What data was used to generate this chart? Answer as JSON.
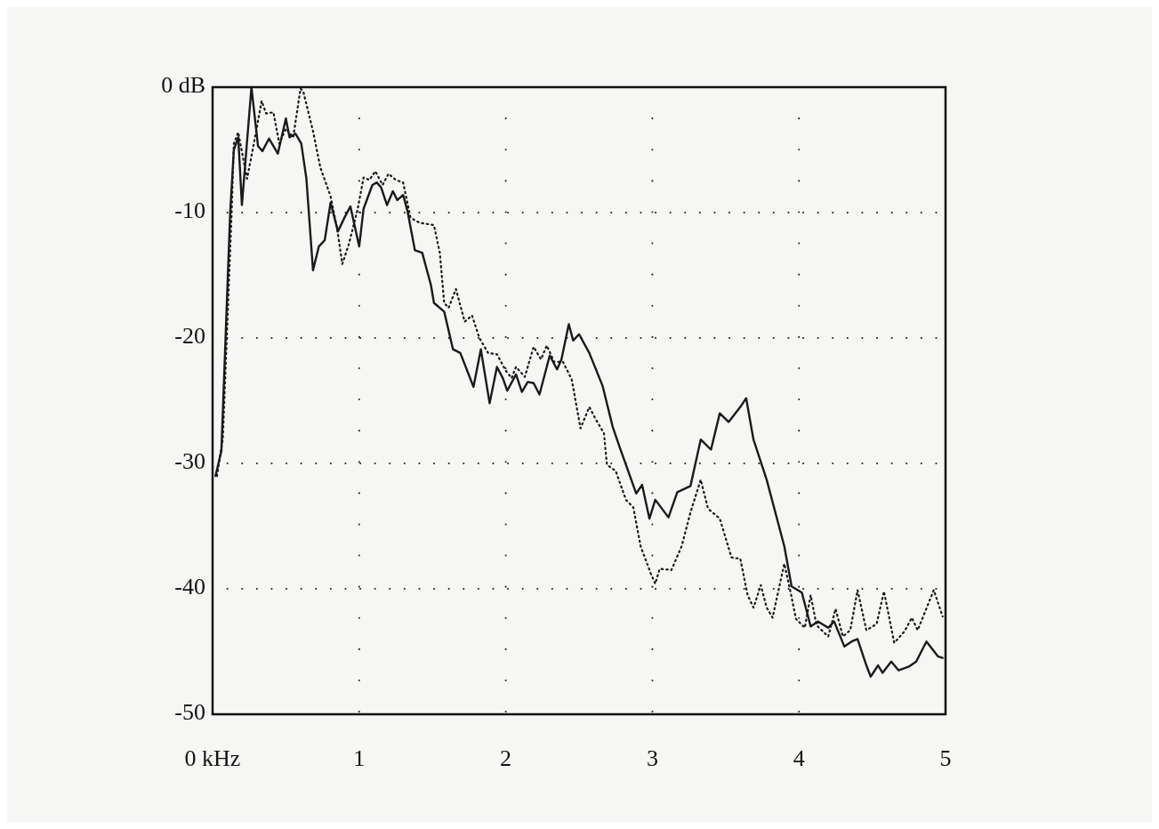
{
  "chart_data": {
    "type": "line",
    "xlim": [
      0,
      5
    ],
    "xticks": [
      {
        "value": 0,
        "label": "0 kHz"
      },
      1,
      2,
      3,
      4,
      5
    ],
    "ylim": [
      -50,
      0
    ],
    "yticks": [
      {
        "value": 0,
        "label": "0 dB"
      },
      -10,
      -20,
      -30,
      -40,
      -50
    ],
    "grid": true,
    "marker": "none",
    "series": [
      {
        "color": "#1a1a1a",
        "line_style": "solid",
        "x": [
          0.02,
          0.06,
          0.12,
          0.145,
          0.175,
          0.2,
          0.265,
          0.31,
          0.34,
          0.385,
          0.445,
          0.5,
          0.525,
          0.565,
          0.605,
          0.64,
          0.685,
          0.725,
          0.765,
          0.805,
          0.855,
          0.9,
          0.94,
          1.0,
          1.03,
          1.09,
          1.12,
          1.15,
          1.19,
          1.23,
          1.26,
          1.3,
          1.33,
          1.38,
          1.43,
          1.49,
          1.51,
          1.58,
          1.64,
          1.69,
          1.78,
          1.83,
          1.89,
          1.94,
          1.98,
          2.01,
          2.07,
          2.11,
          2.15,
          2.19,
          2.23,
          2.3,
          2.35,
          2.38,
          2.43,
          2.46,
          2.5,
          2.57,
          2.66,
          2.73,
          2.78,
          2.89,
          2.93,
          2.98,
          3.02,
          3.11,
          3.17,
          3.26,
          3.33,
          3.4,
          3.46,
          3.52,
          3.6,
          3.64,
          3.69,
          3.78,
          3.9,
          3.95,
          4.02,
          4.08,
          4.13,
          4.2,
          4.24,
          4.31,
          4.36,
          4.4,
          4.46,
          4.49,
          4.54,
          4.57,
          4.63,
          4.68,
          4.75,
          4.8,
          4.87,
          4.95,
          4.98
        ],
        "values": [
          -31,
          -29,
          -10,
          -5,
          -4,
          -9.4,
          0,
          -4.7,
          -5.1,
          -4.1,
          -5.3,
          -2.5,
          -4,
          -3.7,
          -4.5,
          -7.3,
          -14.6,
          -12.7,
          -12.2,
          -9.2,
          -11.5,
          -10.4,
          -9.5,
          -12.7,
          -9.7,
          -7.8,
          -7.6,
          -8,
          -9.4,
          -8.3,
          -9,
          -8.6,
          -9.9,
          -13,
          -13.2,
          -15.8,
          -17.2,
          -17.9,
          -20.9,
          -21.2,
          -23.9,
          -20.9,
          -25.2,
          -22.3,
          -23.2,
          -24.2,
          -22.9,
          -24.3,
          -23.5,
          -23.6,
          -24.5,
          -21.4,
          -22.5,
          -21.7,
          -18.9,
          -20.2,
          -19.7,
          -21.2,
          -23.8,
          -27.1,
          -28.8,
          -32.4,
          -31.7,
          -34.4,
          -32.9,
          -34.3,
          -32.3,
          -31.8,
          -28.1,
          -28.9,
          -26,
          -26.7,
          -25.5,
          -24.8,
          -28.1,
          -31.3,
          -36.6,
          -39.8,
          -40.3,
          -43,
          -42.6,
          -43.1,
          -42.6,
          -44.6,
          -44.2,
          -44,
          -46.1,
          -47,
          -46.1,
          -46.7,
          -45.8,
          -46.5,
          -46.2,
          -45.8,
          -44.2,
          -45.4,
          -45.5
        ]
      },
      {
        "color": "#1a1a1a",
        "line_style": "dotted",
        "x": [
          0.03,
          0.07,
          0.13,
          0.145,
          0.175,
          0.235,
          0.275,
          0.335,
          0.365,
          0.415,
          0.455,
          0.5,
          0.55,
          0.6,
          0.62,
          0.685,
          0.735,
          0.805,
          0.85,
          0.885,
          0.93,
          0.99,
          1.03,
          1.07,
          1.11,
          1.16,
          1.2,
          1.25,
          1.3,
          1.35,
          1.41,
          1.51,
          1.55,
          1.58,
          1.61,
          1.66,
          1.72,
          1.77,
          1.82,
          1.88,
          1.94,
          2.0,
          2.04,
          2.07,
          2.13,
          2.19,
          2.24,
          2.28,
          2.33,
          2.39,
          2.45,
          2.51,
          2.57,
          2.61,
          2.67,
          2.69,
          2.75,
          2.82,
          2.87,
          2.92,
          2.99,
          3.02,
          3.05,
          3.13,
          3.2,
          3.26,
          3.33,
          3.38,
          3.46,
          3.54,
          3.6,
          3.65,
          3.69,
          3.74,
          3.78,
          3.82,
          3.9,
          3.94,
          3.98,
          4.04,
          4.08,
          4.12,
          4.2,
          4.25,
          4.3,
          4.35,
          4.4,
          4.46,
          4.53,
          4.58,
          4.65,
          4.72,
          4.77,
          4.81,
          4.92,
          4.98
        ],
        "values": [
          -31,
          -28,
          -10,
          -4.5,
          -3.6,
          -7.3,
          -4.9,
          -1.1,
          -2.1,
          -2,
          -4.5,
          -3.3,
          -4,
          -0.1,
          -0.4,
          -3.5,
          -6.4,
          -8.7,
          -11.3,
          -14.1,
          -12.5,
          -9.7,
          -7.2,
          -7.4,
          -6.7,
          -7.8,
          -6.9,
          -7.4,
          -7.6,
          -10.4,
          -10.8,
          -11,
          -13.2,
          -17.2,
          -17.6,
          -16.1,
          -18.7,
          -18.2,
          -20,
          -21.2,
          -21.3,
          -22.6,
          -23.2,
          -22.3,
          -23.1,
          -20.7,
          -21.7,
          -20.6,
          -21.9,
          -21.9,
          -23.3,
          -27.2,
          -25.5,
          -26.4,
          -27.6,
          -30.1,
          -30.6,
          -32.9,
          -33.5,
          -36.6,
          -38.8,
          -39.6,
          -38.4,
          -38.5,
          -36.6,
          -33.9,
          -31.3,
          -33.6,
          -34.4,
          -37.5,
          -37.6,
          -40.5,
          -41.5,
          -39.7,
          -41.5,
          -42.3,
          -38,
          -40.1,
          -42.4,
          -43.1,
          -40.5,
          -42.9,
          -43.8,
          -41.6,
          -43.8,
          -43.3,
          -40.1,
          -43.3,
          -42.8,
          -40.2,
          -44.3,
          -43.4,
          -42.3,
          -43.3,
          -40.1,
          -42.2
        ]
      }
    ]
  }
}
